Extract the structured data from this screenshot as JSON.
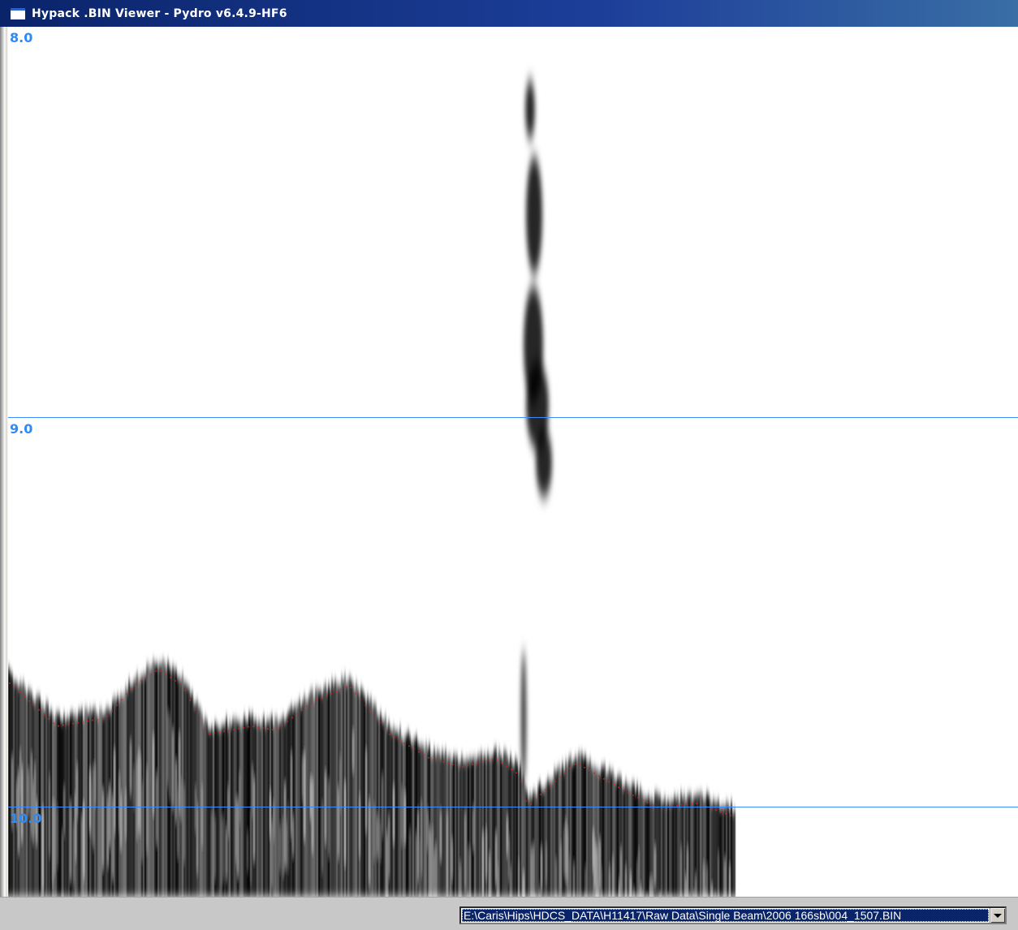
{
  "window": {
    "title": "Hypack .BIN Viewer - Pydro v6.4.9-HF6"
  },
  "echogram": {
    "depth_labels": [
      "8.0",
      "9.0",
      "10.0"
    ],
    "grid_color": "#3a8cff",
    "label_color": "#2f8af5",
    "bottom_pick_color": "#e02020"
  },
  "statusbar": {
    "file_path": "E:\\Caris\\Hips\\HDCS_DATA\\H11417\\Raw Data\\Single Beam\\2006 166sb\\004_1507.BIN"
  }
}
